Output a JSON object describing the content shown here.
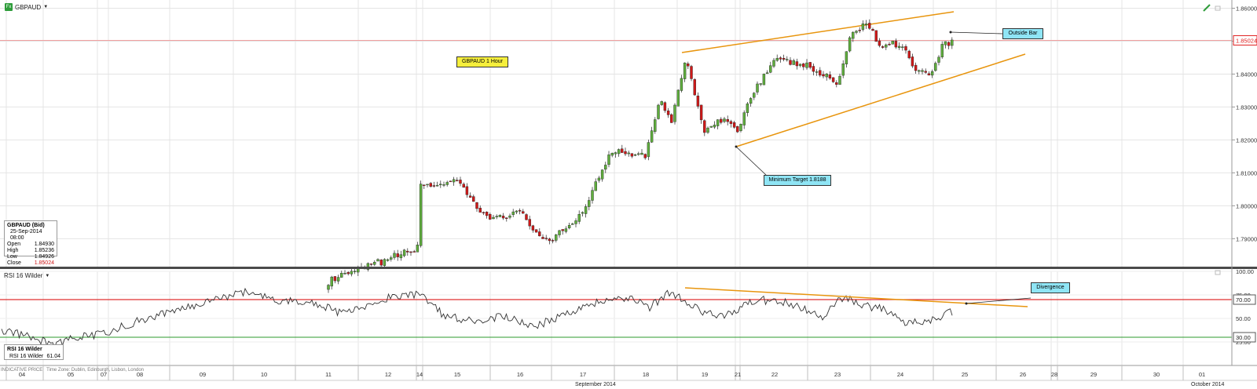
{
  "toolbar": {
    "instrument": "GBPAUD",
    "fx_badge": "Fx"
  },
  "ohlc_box": {
    "title": "GBPAUD (Bid)",
    "datetime": "25-Sep-2014 08:00",
    "rows": [
      {
        "label": "Open",
        "value": "1.84930"
      },
      {
        "label": "High",
        "value": "1.85236"
      },
      {
        "label": "Low",
        "value": "1.84926"
      },
      {
        "label": "Close",
        "value": "1.85024"
      }
    ]
  },
  "annotations": {
    "title_note": "GBPAUD 1 Hour",
    "outside_bar": "Outside Bar",
    "minimum_target": "Minimum Target 1.8188",
    "divergence": "Divergence"
  },
  "rsi_panel": {
    "label": "RSI 16 Wilder",
    "box_title": "RSI 16 Wilder",
    "box_row_label": "RSI 16 Wilder",
    "box_row_value": "61.04"
  },
  "footer": {
    "indicative": "INDICATIVE PRICE",
    "timezone": "Time Zone: Dublin, Edinburgh, Lisbon, London",
    "month_left": "September 2014",
    "month_right": "October 2014"
  },
  "colors": {
    "up": "#5fae3d",
    "down": "#d01818",
    "trend": "#e8950e",
    "note_yellow": "#f6ef3c",
    "note_cyan": "#8fe5f5",
    "rsi_70": "#e03030",
    "rsi_30": "#2d9b2d",
    "price_marker": "#e02020"
  },
  "chart_data": [
    {
      "type": "candlestick",
      "title": "GBPAUD 1 Hour",
      "y_ticks": [
        "1.86000",
        "1.85000",
        "1.84000",
        "1.83000",
        "1.82000",
        "1.81000",
        "1.80000",
        "1.79000"
      ],
      "ylim": [
        1.7815,
        1.8625
      ],
      "last_price": "1.85024",
      "x_ticks": [
        "04",
        "05",
        "07",
        "08",
        "09",
        "10",
        "11",
        "12",
        "14",
        "15",
        "16",
        "17",
        "18",
        "19",
        "21",
        "22",
        "23",
        "24",
        "25",
        "26",
        "28",
        "29",
        "30",
        "01"
      ],
      "points": [
        [
          "12",
          1.7838
        ],
        [
          "13",
          1.7998
        ],
        [
          "14",
          1.8062
        ],
        [
          "15",
          1.807
        ],
        [
          "15",
          1.7962
        ],
        [
          "16",
          1.7978
        ],
        [
          "16",
          1.7882
        ],
        [
          "17",
          1.7982
        ],
        [
          "17",
          1.817
        ],
        [
          "18",
          1.8155
        ],
        [
          "18",
          1.832
        ],
        [
          "18",
          1.8258
        ],
        [
          "18",
          1.8454
        ],
        [
          "19",
          1.8218
        ],
        [
          "19",
          1.826
        ],
        [
          "21",
          1.8235
        ],
        [
          "21",
          1.8355
        ],
        [
          "22",
          1.844
        ],
        [
          "22",
          1.843
        ],
        [
          "23",
          1.8372
        ],
        [
          "23",
          1.852
        ],
        [
          "23",
          1.8562
        ],
        [
          "23",
          1.8485
        ],
        [
          "24",
          1.8495
        ],
        [
          "24",
          1.842
        ],
        [
          "24",
          1.8395
        ],
        [
          "24",
          1.8495
        ],
        [
          "25",
          1.8502
        ]
      ],
      "annotations": [
        "Outside Bar",
        "Minimum Target 1.8188"
      ]
    },
    {
      "type": "line",
      "series": [
        {
          "name": "RSI 16 Wilder",
          "last_value": 61.04
        }
      ],
      "y_ticks": [
        "100.00",
        "75.00",
        "50.00",
        "25.00"
      ],
      "reference_lines": [
        70,
        30
      ],
      "ylim": [
        0,
        100
      ],
      "points": [
        [
          "04",
          38
        ],
        [
          "04",
          30
        ],
        [
          "05",
          22
        ],
        [
          "05",
          28
        ],
        [
          "07",
          34
        ],
        [
          "08",
          48
        ],
        [
          "09",
          62
        ],
        [
          "09",
          72
        ],
        [
          "10",
          78
        ],
        [
          "10",
          68
        ],
        [
          "11",
          68
        ],
        [
          "11",
          55
        ],
        [
          "12",
          66
        ],
        [
          "12",
          72
        ],
        [
          "14",
          76
        ],
        [
          "15",
          55
        ],
        [
          "15",
          46
        ],
        [
          "16",
          52
        ],
        [
          "16",
          42
        ],
        [
          "17",
          56
        ],
        [
          "17",
          68
        ],
        [
          "18",
          72
        ],
        [
          "18",
          62
        ],
        [
          "18",
          78
        ],
        [
          "19",
          55
        ],
        [
          "21",
          52
        ],
        [
          "21",
          62
        ],
        [
          "22",
          70
        ],
        [
          "22",
          66
        ],
        [
          "23",
          52
        ],
        [
          "23",
          72
        ],
        [
          "23",
          64
        ],
        [
          "24",
          60
        ],
        [
          "24",
          46
        ],
        [
          "24",
          48
        ],
        [
          "25",
          61.04
        ]
      ],
      "annotations": [
        "Divergence"
      ]
    }
  ]
}
